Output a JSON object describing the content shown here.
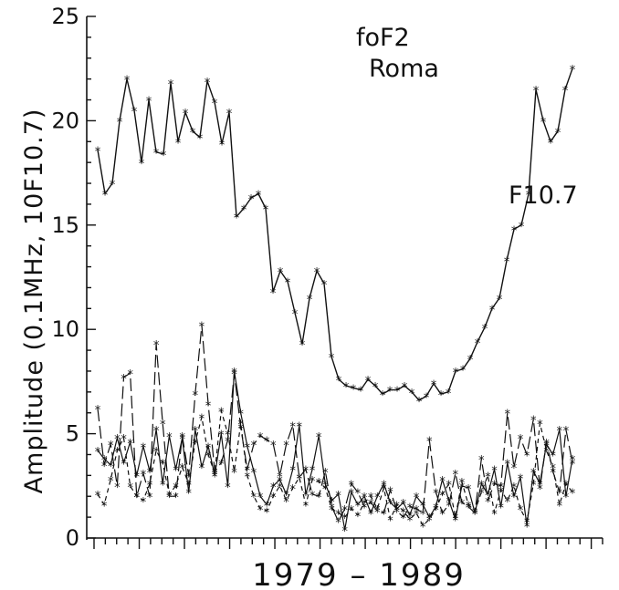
{
  "chart_data": {
    "type": "line",
    "title": "foF2",
    "subtitle": "Roma",
    "xlabel": "1979 – 1989",
    "ylabel": "Amplitude (0.1MHz, 10F10.7)",
    "ylim": [
      0,
      25
    ],
    "yticks": [
      "0",
      "5",
      "10",
      "15",
      "20",
      "25"
    ],
    "grid": false,
    "legend": "none",
    "series": [
      {
        "name": "F10.7",
        "style": "solid",
        "values": [
          18.6,
          16.5,
          17.0,
          20.0,
          22.0,
          20.5,
          18.0,
          21.0,
          18.5,
          18.4,
          21.8,
          19.0,
          20.4,
          19.5,
          19.2,
          21.9,
          20.9,
          18.9,
          20.4,
          15.4,
          15.8,
          16.3,
          16.5,
          15.8,
          11.8,
          12.8,
          12.3,
          10.8,
          9.3,
          11.5,
          12.8,
          12.2,
          8.7,
          7.6,
          7.3,
          7.2,
          7.1,
          7.6,
          7.3,
          6.9,
          7.1,
          7.1,
          7.3,
          7.0,
          6.6,
          6.8,
          7.4,
          6.9,
          7.0,
          8.0,
          8.1,
          8.6,
          9.4,
          10.1,
          11.0,
          11.5,
          13.3,
          14.8,
          15.0,
          16.5,
          21.5,
          20.0,
          19.0,
          19.5,
          21.5,
          22.5
        ]
      },
      {
        "name": "",
        "style": "solid",
        "values": [
          4.2,
          3.8,
          3.5,
          4.8,
          3.6,
          4.6,
          3.0,
          4.4,
          3.2,
          5.2,
          2.6,
          4.9,
          3.3,
          4.8,
          2.2,
          5.2,
          3.4,
          4.4,
          3.0,
          5.0,
          2.5,
          8.0,
          6.0,
          4.4,
          3.2,
          2.0,
          1.6,
          2.5,
          2.8,
          2.1,
          3.3,
          5.4,
          2.1,
          3.3,
          4.9,
          2.6,
          1.8,
          2.1,
          0.4,
          2.2,
          1.6,
          2.0,
          1.2,
          2.0,
          2.6,
          1.7,
          1.4,
          1.7,
          1.1,
          2.0,
          1.6,
          1.0,
          1.5,
          2.8,
          1.8,
          0.9,
          2.5,
          2.4,
          1.2,
          2.6,
          2.1,
          3.3,
          1.5,
          3.6,
          2.0,
          2.9,
          0.6,
          3.2,
          2.6,
          4.5,
          4.0,
          5.2,
          2.0,
          3.8
        ]
      },
      {
        "name": "",
        "style": "long-dash",
        "values": [
          6.2,
          3.5,
          4.5,
          2.5,
          7.7,
          7.9,
          2.0,
          3.1,
          2.0,
          9.3,
          5.5,
          2.0,
          2.0,
          4.9,
          3.0,
          6.9,
          10.2,
          6.4,
          3.2,
          3.6,
          4.7,
          7.9,
          5.3,
          3.3,
          4.5,
          4.9,
          4.7,
          4.5,
          3.0,
          4.5,
          5.4,
          2.9,
          3.3,
          2.1,
          2.0,
          3.2,
          1.5,
          0.8,
          1.4,
          2.6,
          2.2,
          1.5,
          1.7,
          1.3,
          1.2,
          2.3,
          1.3,
          1.0,
          1.5,
          1.4,
          1.2,
          4.7,
          2.2,
          1.2,
          1.6,
          3.1,
          1.7,
          1.5,
          1.2,
          3.8,
          1.8,
          2.6,
          2.5,
          6.0,
          3.4,
          4.8,
          4.0,
          5.7,
          2.4,
          4.6,
          3.2,
          2.2,
          5.2,
          3.6
        ]
      },
      {
        "name": "",
        "style": "short-dash",
        "values": [
          2.1,
          1.6,
          2.8,
          4.2,
          4.8,
          2.5,
          2.0,
          1.8,
          2.6,
          4.2,
          3.6,
          2.1,
          2.5,
          3.4,
          2.6,
          4.6,
          5.8,
          4.0,
          3.1,
          6.1,
          5.0,
          3.2,
          5.5,
          3.0,
          2.0,
          1.4,
          1.3,
          2.0,
          2.5,
          1.8,
          2.4,
          2.9,
          1.6,
          2.8,
          2.7,
          2.4,
          1.4,
          1.2,
          1.0,
          1.4,
          1.1,
          1.7,
          2.0,
          1.4,
          2.4,
          0.9,
          1.6,
          1.3,
          0.9,
          1.2,
          0.6,
          0.9,
          1.4,
          2.1,
          2.6,
          1.0,
          2.7,
          1.6,
          1.3,
          2.2,
          3.0,
          1.2,
          2.3,
          1.8,
          2.5,
          1.4,
          0.8,
          2.6,
          5.5,
          4.2,
          3.4,
          1.6,
          2.6,
          2.2
        ]
      }
    ]
  }
}
